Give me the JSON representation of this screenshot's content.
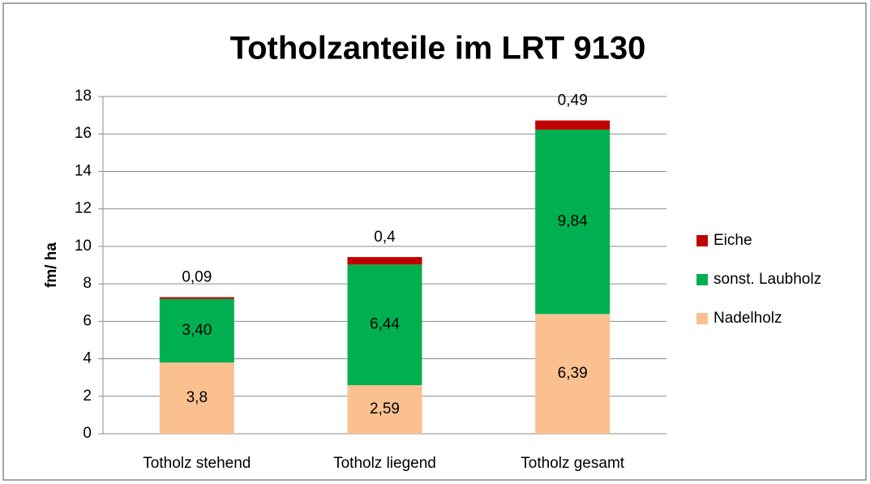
{
  "chart_data": {
    "type": "stacked_bar",
    "title": "Totholzanteile im LRT 9130",
    "y_label": "fm/ ha",
    "categories": [
      "Totholz stehend",
      "Totholz liegend",
      "Totholz gesamt"
    ],
    "series": [
      {
        "name": "Nadelholz",
        "color": "#fac090",
        "values": [
          3.8,
          2.59,
          6.39
        ],
        "value_labels": [
          "3,8",
          "2,59",
          "6,39"
        ]
      },
      {
        "name": "sonst. Laubholz",
        "color": "#00b050",
        "values": [
          3.4,
          6.44,
          9.84
        ],
        "value_labels": [
          "3,40",
          "6,44",
          "9,84"
        ]
      },
      {
        "name": "Eiche",
        "color": "#c00000",
        "values": [
          0.09,
          0.4,
          0.49
        ],
        "value_labels": [
          "0,09",
          "0,4",
          "0,49"
        ]
      }
    ],
    "ylim": [
      0,
      18
    ],
    "yticks": [
      0,
      2,
      4,
      6,
      8,
      10,
      12,
      14,
      16,
      18
    ],
    "grid": true,
    "legend": "right"
  }
}
